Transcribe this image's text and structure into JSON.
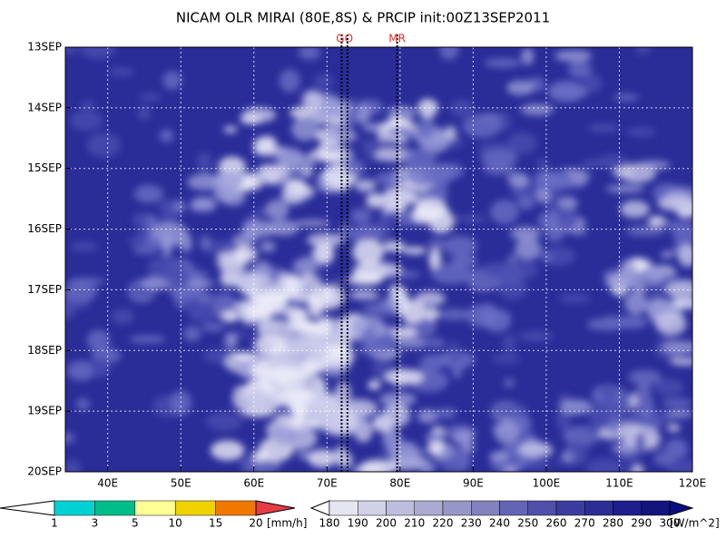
{
  "chart_data": {
    "type": "heatmap",
    "title": "NICAM OLR MIRAI (80E,8S) & PRCIP init:00Z13SEP2011",
    "xlim": [
      34.2,
      120
    ],
    "xticks": [
      {
        "value": 40,
        "label": "40E"
      },
      {
        "value": 50,
        "label": "50E"
      },
      {
        "value": 60,
        "label": "60E"
      },
      {
        "value": 70,
        "label": "70E"
      },
      {
        "value": 80,
        "label": "80E"
      },
      {
        "value": 90,
        "label": "90E"
      },
      {
        "value": 100,
        "label": "100E"
      },
      {
        "value": 110,
        "label": "110E"
      },
      {
        "value": 120,
        "label": "120E"
      }
    ],
    "ylim": [
      13,
      20
    ],
    "yticks": [
      {
        "value": 13,
        "label": "13SEP"
      },
      {
        "value": 14,
        "label": "14SEP"
      },
      {
        "value": 15,
        "label": "15SEP"
      },
      {
        "value": 16,
        "label": "16SEP"
      },
      {
        "value": 17,
        "label": "17SEP"
      },
      {
        "value": 18,
        "label": "18SEP"
      },
      {
        "value": 19,
        "label": "19SEP"
      },
      {
        "value": 20,
        "label": "20SEP"
      }
    ],
    "grid": true,
    "annotations": [
      {
        "label": "GO",
        "x": [
          72.0,
          72.8
        ]
      },
      {
        "label": "MR",
        "x": [
          79.6
        ]
      }
    ],
    "colorbars": [
      {
        "unit": "[mm/h]",
        "levels": [
          1,
          3,
          5,
          10,
          15,
          20
        ],
        "colors": [
          "#ffffff",
          "#00d2d2",
          "#00be8c",
          "#ffff96",
          "#f0d200",
          "#f07800",
          "#e63c46"
        ]
      },
      {
        "unit": "[W/m^2]",
        "levels": [
          180,
          190,
          200,
          210,
          220,
          230,
          240,
          250,
          260,
          270,
          280,
          290,
          300
        ],
        "colors": [
          "#ffffff",
          "#e6e6f0",
          "#d2d2e6",
          "#bebedc",
          "#aaaad2",
          "#9696c8",
          "#8282be",
          "#6464b4",
          "#5050aa",
          "#3c3ca0",
          "#2d2d96",
          "#1e1e8c",
          "#14147d",
          "#0a0a82"
        ]
      }
    ]
  }
}
